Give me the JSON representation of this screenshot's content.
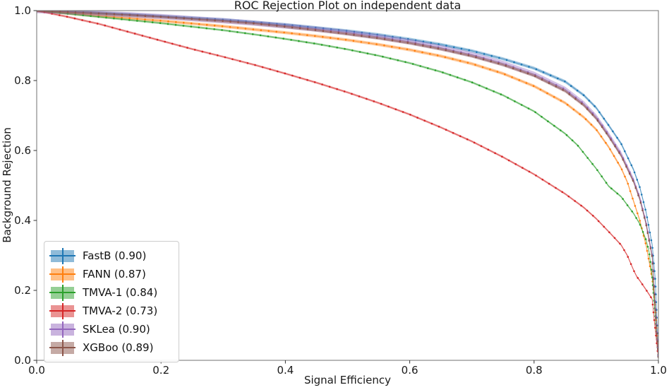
{
  "chart_data": {
    "type": "line",
    "title": "ROC Rejection Plot on independent data",
    "xlabel": "Signal Efficiency",
    "ylabel": "Background Rejection",
    "xlim": [
      0.0,
      1.0
    ],
    "ylim": [
      0.0,
      1.0
    ],
    "x_ticks": [
      0.0,
      0.2,
      0.4,
      0.6,
      0.8,
      1.0
    ],
    "y_ticks": [
      0.0,
      0.2,
      0.4,
      0.6,
      0.8,
      1.0
    ],
    "x_tick_labels": [
      "0.0",
      "0.2",
      "0.4",
      "0.6",
      "0.8",
      "1.0"
    ],
    "y_tick_labels": [
      "0.0",
      "0.2",
      "0.4",
      "0.6",
      "0.8",
      "1.0"
    ],
    "grid": false,
    "legend_position": "lower left",
    "marker": "dot",
    "series": [
      {
        "name": "FastB",
        "label": "FastB (0.90)",
        "auc": 0.9,
        "color": "#1f77b4",
        "band": 0.0045,
        "points": [
          [
            0.0,
            1.0
          ],
          [
            0.05,
            0.997
          ],
          [
            0.1,
            0.993
          ],
          [
            0.15,
            0.989
          ],
          [
            0.2,
            0.984
          ],
          [
            0.25,
            0.979
          ],
          [
            0.3,
            0.974
          ],
          [
            0.35,
            0.967
          ],
          [
            0.4,
            0.96
          ],
          [
            0.45,
            0.951
          ],
          [
            0.5,
            0.942
          ],
          [
            0.55,
            0.931
          ],
          [
            0.6,
            0.918
          ],
          [
            0.65,
            0.903
          ],
          [
            0.7,
            0.885
          ],
          [
            0.75,
            0.862
          ],
          [
            0.8,
            0.835
          ],
          [
            0.85,
            0.797
          ],
          [
            0.88,
            0.758
          ],
          [
            0.9,
            0.722
          ],
          [
            0.92,
            0.672
          ],
          [
            0.94,
            0.62
          ],
          [
            0.96,
            0.545
          ],
          [
            0.97,
            0.495
          ],
          [
            0.98,
            0.425
          ],
          [
            0.99,
            0.33
          ],
          [
            0.995,
            0.23
          ],
          [
            1.0,
            0.005
          ]
        ]
      },
      {
        "name": "FANN",
        "label": "FANN (0.87)",
        "auc": 0.87,
        "color": "#ff7f0e",
        "band": 0.0045,
        "points": [
          [
            0.0,
            1.0
          ],
          [
            0.05,
            0.993
          ],
          [
            0.1,
            0.985
          ],
          [
            0.15,
            0.978
          ],
          [
            0.2,
            0.971
          ],
          [
            0.25,
            0.963
          ],
          [
            0.3,
            0.955
          ],
          [
            0.35,
            0.946
          ],
          [
            0.4,
            0.937
          ],
          [
            0.45,
            0.927
          ],
          [
            0.5,
            0.916
          ],
          [
            0.55,
            0.903
          ],
          [
            0.6,
            0.888
          ],
          [
            0.65,
            0.87
          ],
          [
            0.7,
            0.848
          ],
          [
            0.75,
            0.82
          ],
          [
            0.8,
            0.784
          ],
          [
            0.85,
            0.736
          ],
          [
            0.88,
            0.695
          ],
          [
            0.9,
            0.66
          ],
          [
            0.92,
            0.61
          ],
          [
            0.94,
            0.55
          ],
          [
            0.95,
            0.51
          ],
          [
            0.96,
            0.455
          ],
          [
            0.97,
            0.4
          ],
          [
            0.98,
            0.33
          ],
          [
            0.99,
            0.235
          ],
          [
            0.995,
            0.15
          ],
          [
            1.0,
            0.005
          ]
        ]
      },
      {
        "name": "TMVA-1",
        "label": "TMVA-1 (0.84)",
        "auc": 0.84,
        "color": "#2ca02c",
        "band": 0.003,
        "points": [
          [
            0.0,
            1.0
          ],
          [
            0.05,
            0.991
          ],
          [
            0.1,
            0.982
          ],
          [
            0.15,
            0.973
          ],
          [
            0.2,
            0.964
          ],
          [
            0.25,
            0.954
          ],
          [
            0.3,
            0.944
          ],
          [
            0.35,
            0.932
          ],
          [
            0.4,
            0.919
          ],
          [
            0.45,
            0.905
          ],
          [
            0.5,
            0.889
          ],
          [
            0.55,
            0.871
          ],
          [
            0.6,
            0.85
          ],
          [
            0.65,
            0.825
          ],
          [
            0.7,
            0.795
          ],
          [
            0.75,
            0.758
          ],
          [
            0.8,
            0.712
          ],
          [
            0.85,
            0.648
          ],
          [
            0.87,
            0.615
          ],
          [
            0.9,
            0.548
          ],
          [
            0.92,
            0.498
          ],
          [
            0.94,
            0.468
          ],
          [
            0.96,
            0.42
          ],
          [
            0.97,
            0.39
          ],
          [
            0.98,
            0.345
          ],
          [
            0.985,
            0.31
          ],
          [
            0.99,
            0.24
          ],
          [
            1.0,
            0.005
          ]
        ]
      },
      {
        "name": "TMVA-2",
        "label": "TMVA-2 (0.73)",
        "auc": 0.73,
        "color": "#d62728",
        "band": 0.003,
        "points": [
          [
            0.0,
            1.0
          ],
          [
            0.05,
            0.982
          ],
          [
            0.1,
            0.962
          ],
          [
            0.15,
            0.938
          ],
          [
            0.2,
            0.914
          ],
          [
            0.25,
            0.89
          ],
          [
            0.3,
            0.868
          ],
          [
            0.35,
            0.845
          ],
          [
            0.4,
            0.82
          ],
          [
            0.45,
            0.794
          ],
          [
            0.5,
            0.766
          ],
          [
            0.55,
            0.736
          ],
          [
            0.6,
            0.703
          ],
          [
            0.65,
            0.666
          ],
          [
            0.7,
            0.626
          ],
          [
            0.75,
            0.581
          ],
          [
            0.8,
            0.532
          ],
          [
            0.85,
            0.476
          ],
          [
            0.88,
            0.437
          ],
          [
            0.9,
            0.405
          ],
          [
            0.92,
            0.368
          ],
          [
            0.94,
            0.33
          ],
          [
            0.95,
            0.3
          ],
          [
            0.96,
            0.258
          ],
          [
            0.965,
            0.24
          ],
          [
            0.97,
            0.228
          ],
          [
            0.98,
            0.202
          ],
          [
            0.99,
            0.175
          ],
          [
            0.993,
            0.12
          ],
          [
            1.0,
            0.005
          ]
        ]
      },
      {
        "name": "SKLea",
        "label": "SKLea (0.90)",
        "auc": 0.9,
        "color": "#9467bd",
        "band": 0.0075,
        "points": [
          [
            0.0,
            1.0
          ],
          [
            0.05,
            0.997
          ],
          [
            0.1,
            0.992
          ],
          [
            0.15,
            0.988
          ],
          [
            0.2,
            0.983
          ],
          [
            0.25,
            0.977
          ],
          [
            0.3,
            0.971
          ],
          [
            0.35,
            0.964
          ],
          [
            0.4,
            0.956
          ],
          [
            0.45,
            0.947
          ],
          [
            0.5,
            0.937
          ],
          [
            0.55,
            0.925
          ],
          [
            0.6,
            0.911
          ],
          [
            0.65,
            0.894
          ],
          [
            0.7,
            0.874
          ],
          [
            0.75,
            0.849
          ],
          [
            0.8,
            0.818
          ],
          [
            0.85,
            0.775
          ],
          [
            0.88,
            0.734
          ],
          [
            0.9,
            0.696
          ],
          [
            0.92,
            0.645
          ],
          [
            0.94,
            0.59
          ],
          [
            0.96,
            0.515
          ],
          [
            0.97,
            0.465
          ],
          [
            0.98,
            0.395
          ],
          [
            0.99,
            0.3
          ],
          [
            0.993,
            0.21
          ],
          [
            1.0,
            0.005
          ]
        ]
      },
      {
        "name": "XGBoo",
        "label": "XGBoo (0.89)",
        "auc": 0.89,
        "color": "#8c564b",
        "band": 0.0045,
        "points": [
          [
            0.0,
            1.0
          ],
          [
            0.05,
            0.996
          ],
          [
            0.1,
            0.992
          ],
          [
            0.15,
            0.987
          ],
          [
            0.2,
            0.982
          ],
          [
            0.25,
            0.976
          ],
          [
            0.3,
            0.97
          ],
          [
            0.35,
            0.963
          ],
          [
            0.4,
            0.954
          ],
          [
            0.45,
            0.944
          ],
          [
            0.5,
            0.933
          ],
          [
            0.55,
            0.921
          ],
          [
            0.6,
            0.907
          ],
          [
            0.65,
            0.89
          ],
          [
            0.7,
            0.87
          ],
          [
            0.75,
            0.845
          ],
          [
            0.8,
            0.814
          ],
          [
            0.85,
            0.77
          ],
          [
            0.88,
            0.729
          ],
          [
            0.9,
            0.691
          ],
          [
            0.92,
            0.64
          ],
          [
            0.94,
            0.585
          ],
          [
            0.96,
            0.51
          ],
          [
            0.97,
            0.46
          ],
          [
            0.98,
            0.39
          ],
          [
            0.99,
            0.295
          ],
          [
            0.993,
            0.205
          ],
          [
            1.0,
            0.005
          ]
        ]
      }
    ]
  }
}
